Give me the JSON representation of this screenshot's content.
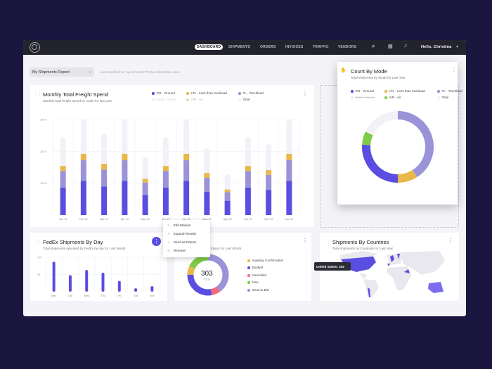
{
  "nav": {
    "items": [
      "DASHBOARD",
      "SHIPMENTS",
      "ORDERS",
      "INVOICES",
      "TRAFFIC",
      "VENDORS"
    ],
    "active": "DASHBOARD",
    "user": "Hello, Christina",
    "icons": [
      "search-icon",
      "chat-icon",
      "bell-icon",
      "chevron-down-icon"
    ]
  },
  "report": {
    "selected": "My Shipments Report",
    "modified": "Last Modified: 12 Apr 20 12:20 PM by Johnathan Lewis"
  },
  "colors": {
    "ground": "#5a4ee0",
    "ltl": "#e8b84a",
    "tl": "#9b93d8",
    "total": "#f2f1f8",
    "air": "#7fcb47",
    "cancelled": "#f06a80",
    "ocean": "#dddddd"
  },
  "freight": {
    "title": "Monthly Total Freight Spend",
    "subtitle": "Monthly total freight spend by mode for last year",
    "legend": [
      "GR - Ground",
      "LTL - Less than truckload",
      "TL - Truckload",
      "OCN - Ocean",
      "AIR - Air",
      "Total"
    ]
  },
  "chart_data": [
    {
      "type": "bar",
      "stacked": true,
      "title": "Monthly Total Freight Spend",
      "ylim": [
        0,
        300
      ],
      "yticks": [
        "100 K",
        "200 K",
        "300 K"
      ],
      "categories": [
        "Jan 19",
        "Feb 19",
        "Mar 19",
        "Apr 19",
        "May 19",
        "Jun 19",
        "Jul 19",
        "Aug 19",
        "Sep 19",
        "Oct 19",
        "Nov 19",
        "Dec 19"
      ],
      "series": [
        {
          "name": "GR - Ground",
          "values": [
            86,
            107,
            90,
            107,
            63,
            86,
            107,
            73,
            45,
            86,
            79,
            107
          ]
        },
        {
          "name": "TL - Truckload",
          "values": [
            52,
            65,
            53,
            65,
            39,
            52,
            65,
            44,
            27,
            52,
            47,
            65
          ]
        },
        {
          "name": "LTL - Less than truckload",
          "values": [
            16,
            20,
            18,
            20,
            12,
            16,
            20,
            15,
            8,
            16,
            15,
            20
          ]
        },
        {
          "name": "Total",
          "values": [
            244,
            300,
            256,
            300,
            181,
            244,
            300,
            209,
            128,
            244,
            224,
            300
          ]
        }
      ]
    },
    {
      "type": "bar",
      "title": "FedEx Shipments By Day",
      "ylim": [
        0,
        100
      ],
      "yticks": [
        "50",
        "100"
      ],
      "categories": [
        "Mon",
        "Tue",
        "Wed",
        "Thu",
        "Fri",
        "Sat",
        "Sun"
      ],
      "values": [
        87,
        48,
        63,
        55,
        31,
        10,
        16
      ]
    },
    {
      "type": "pie",
      "donut": true,
      "title": "Shipments by Status",
      "total": "303",
      "total_label": "TOTAL",
      "labels": [
        "Send to Bid",
        "Cancelled",
        "Booked",
        "Awaiting Confirmation",
        "New"
      ],
      "values": [
        40,
        7,
        28,
        7,
        18
      ]
    },
    {
      "type": "pie",
      "donut": true,
      "title": "Count By Mode",
      "labels": [
        "TL - Truckload",
        "LTL - Less than truckload",
        "GR - Ground",
        "AIR - Air",
        "Total"
      ],
      "values": [
        41,
        9,
        26,
        6,
        18
      ]
    }
  ],
  "fedex": {
    "title": "FedEx Shipments By Day",
    "subtitle": "Total shipments operated by FedEx by day for Last Month"
  },
  "menu": [
    "Edit Module",
    "Expand Results",
    "Send as Report",
    "Remove"
  ],
  "status": {
    "subtitle": "nts by Status for Last Month",
    "legend": [
      "Awaiting Confirmation",
      "Booked",
      "Cancelled",
      "New",
      "Send to Bid"
    ]
  },
  "countries": {
    "title": "Shipments By Countries",
    "subtitle": "Total shipments by Countries for Last Year",
    "tooltip": "United States: 292"
  },
  "mode": {
    "title": "Count By Mode",
    "subtitle": "Total shipments by Mode for Last Year",
    "legend": [
      "GR - Ground",
      "LTL - Less than truckload",
      "TL - Truckload",
      "OCN - Ocean",
      "AIR - Air",
      "Total"
    ]
  }
}
